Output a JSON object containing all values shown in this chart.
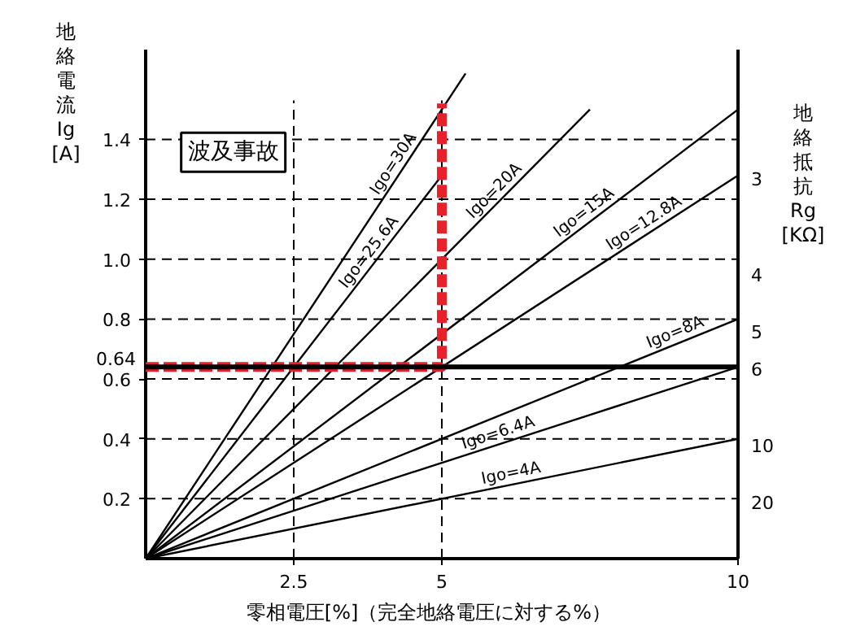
{
  "chart_data": {
    "type": "line",
    "xlabel": "零相電圧[%]（完全地絡電圧に対する%）",
    "ylabel": "地絡電流 Ig [A]",
    "y2label": "地絡抵抗 Rg [KΩ]",
    "xlim": [
      0,
      10
    ],
    "xticks": [
      2.5,
      5,
      10
    ],
    "ylim": [
      0,
      1.7
    ],
    "yticks": [
      0.2,
      0.4,
      0.6,
      0.8,
      {
        "value": 1.0,
        "label": "1.0"
      },
      1.2,
      1.4
    ],
    "grid": true,
    "legend": false,
    "marker": "none",
    "line_style": "solid",
    "series": [
      {
        "name": "Igo=30A",
        "color": "#000000",
        "x": [
          0,
          5.4
        ],
        "values": [
          0,
          1.62
        ]
      },
      {
        "name": "Igo=25.6A",
        "color": "#000000",
        "x": [
          0,
          5
        ],
        "values": [
          0,
          1.28
        ]
      },
      {
        "name": "Igo=20A",
        "color": "#000000",
        "x": [
          0,
          7.5
        ],
        "values": [
          0,
          1.5
        ]
      },
      {
        "name": "Igo=15A",
        "color": "#000000",
        "x": [
          0,
          10
        ],
        "values": [
          0,
          1.5
        ]
      },
      {
        "name": "Igo=12.8A",
        "color": "#000000",
        "x": [
          0,
          10
        ],
        "values": [
          0,
          1.28
        ]
      },
      {
        "name": "Igo=8A",
        "color": "#000000",
        "x": [
          0,
          10
        ],
        "values": [
          0,
          0.8
        ]
      },
      {
        "name": "Igo=6.4A",
        "color": "#000000",
        "x": [
          0,
          10
        ],
        "values": [
          0,
          0.64
        ]
      },
      {
        "name": "Igo=4A",
        "color": "#000000",
        "x": [
          0,
          10
        ],
        "values": [
          0,
          0.4
        ]
      },
      {
        "color": "#e8202a",
        "line_style": "dashed",
        "x": [
          0,
          5,
          5
        ],
        "values": [
          0.64,
          0.64,
          1.52
        ]
      }
    ],
    "ref_lines": [
      {
        "axis": "y",
        "value": 0.64,
        "label": "0.64",
        "color": "#000000"
      }
    ],
    "annotations": [
      "波及事故",
      "3",
      "4",
      "5",
      "6",
      "10",
      "20"
    ]
  }
}
